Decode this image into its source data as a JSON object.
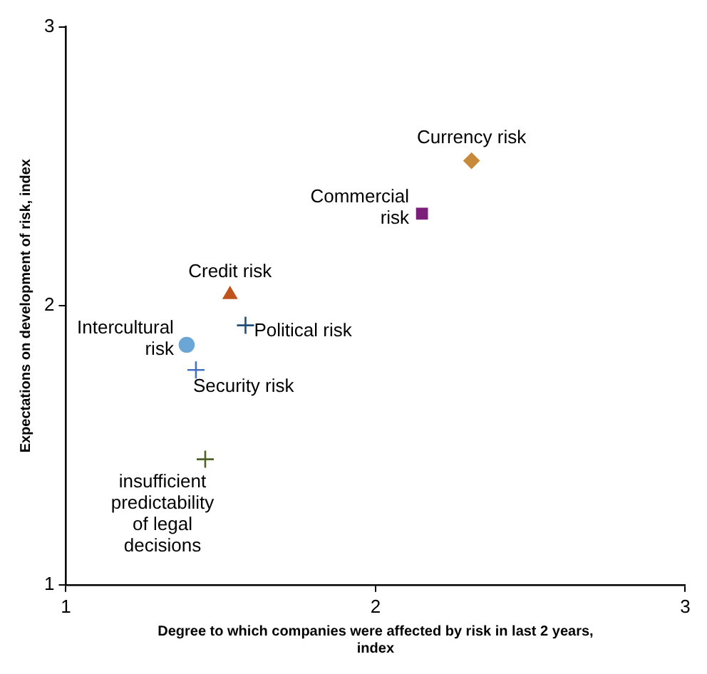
{
  "chart_data": {
    "type": "scatter",
    "xlabel": "Degree to which companies were affected by risk in last 2 years, index",
    "ylabel": "Expectations on development of risk, index",
    "xlim": [
      1,
      3
    ],
    "xticks": [
      1,
      2,
      3
    ],
    "ylim": [
      1,
      3
    ],
    "yticks": [
      1,
      2,
      3
    ],
    "grid": false,
    "legend": false,
    "series": [
      {
        "name": "Currency risk",
        "color": "#c8893a",
        "marker": "diamond",
        "x": [
          2.31
        ],
        "values": [
          2.52
        ]
      },
      {
        "name": "Commercial risk",
        "color": "#7b1f7a",
        "marker": "square",
        "x": [
          2.15
        ],
        "values": [
          2.33
        ]
      },
      {
        "name": "Credit risk",
        "color": "#c0531c",
        "marker": "triangle",
        "x": [
          1.53
        ],
        "values": [
          2.04
        ]
      },
      {
        "name": "Political risk",
        "color": "#1f4e79",
        "marker": "cross",
        "x": [
          1.58
        ],
        "values": [
          1.93
        ]
      },
      {
        "name": "Intercultural risk",
        "color": "#6aa6d6",
        "marker": "circle",
        "x": [
          1.39
        ],
        "values": [
          1.86
        ]
      },
      {
        "name": "Security risk",
        "color": "#4472c4",
        "marker": "cross",
        "x": [
          1.42
        ],
        "values": [
          1.77
        ]
      },
      {
        "name": "insufficient predictability of legal decisions",
        "color": "#4f6228",
        "marker": "cross",
        "x": [
          1.45
        ],
        "values": [
          1.45
        ]
      }
    ]
  }
}
